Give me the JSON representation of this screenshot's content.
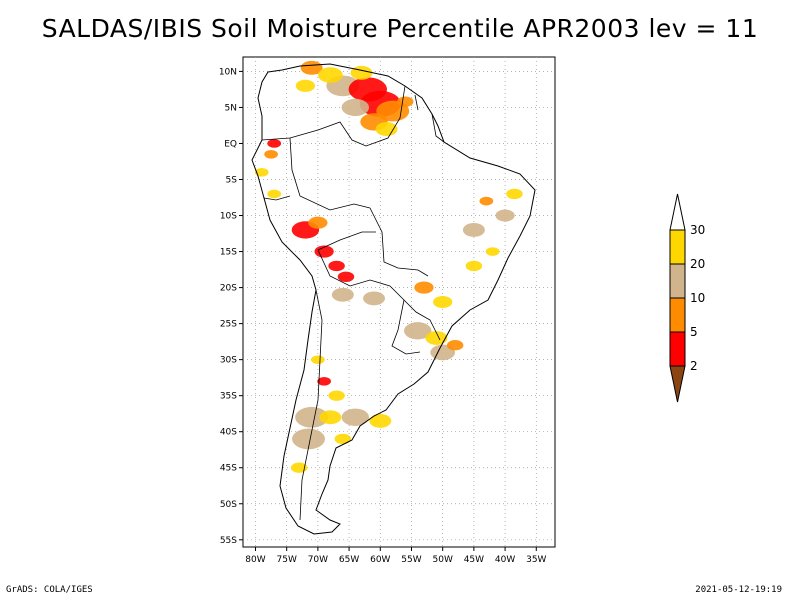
{
  "title": "SALDAS/IBIS Soil Moisture Percentile APR2003 lev = 11",
  "footer": {
    "left": "GrADS: COLA/IGES",
    "right": "2021-05-12-19:19"
  },
  "map": {
    "region": "South America",
    "lon_range": [
      -82,
      -32
    ],
    "lat_range": [
      -56,
      12
    ],
    "lon_ticks": [
      {
        "v": -80,
        "label": "80W"
      },
      {
        "v": -75,
        "label": "75W"
      },
      {
        "v": -70,
        "label": "70W"
      },
      {
        "v": -65,
        "label": "65W"
      },
      {
        "v": -60,
        "label": "60W"
      },
      {
        "v": -55,
        "label": "55W"
      },
      {
        "v": -50,
        "label": "50W"
      },
      {
        "v": -45,
        "label": "45W"
      },
      {
        "v": -40,
        "label": "40W"
      },
      {
        "v": -35,
        "label": "35W"
      }
    ],
    "lat_ticks": [
      {
        "v": 10,
        "label": "10N"
      },
      {
        "v": 5,
        "label": "5N"
      },
      {
        "v": 0,
        "label": "EQ"
      },
      {
        "v": -5,
        "label": "5S"
      },
      {
        "v": -10,
        "label": "10S"
      },
      {
        "v": -15,
        "label": "15S"
      },
      {
        "v": -20,
        "label": "20S"
      },
      {
        "v": -25,
        "label": "25S"
      },
      {
        "v": -30,
        "label": "30S"
      },
      {
        "v": -35,
        "label": "35S"
      },
      {
        "v": -40,
        "label": "40S"
      },
      {
        "v": -45,
        "label": "45S"
      },
      {
        "v": -50,
        "label": "50S"
      },
      {
        "v": -55,
        "label": "55S"
      }
    ]
  },
  "colorbar": {
    "bins": [
      {
        "color": "#8b4513"
      },
      {
        "color": "#ff0000"
      },
      {
        "color": "#ff8c00"
      },
      {
        "color": "#d2b48c"
      },
      {
        "color": "#ffd700"
      },
      {
        "color": "#ffffff"
      }
    ],
    "labels": [
      "2",
      "5",
      "10",
      "20",
      "30"
    ]
  },
  "blotches": [
    {
      "lon": -66,
      "lat": 8,
      "r": 1.2,
      "c": 3
    },
    {
      "lon": -62,
      "lat": 7.5,
      "r": 1.4,
      "c": 1
    },
    {
      "lon": -60,
      "lat": 5.5,
      "r": 1.5,
      "c": 1
    },
    {
      "lon": -58,
      "lat": 4.5,
      "r": 1.2,
      "c": 2
    },
    {
      "lon": -64,
      "lat": 5,
      "r": 1.0,
      "c": 3
    },
    {
      "lon": -61,
      "lat": 3,
      "r": 1.0,
      "c": 2
    },
    {
      "lon": -59,
      "lat": 2,
      "r": 0.8,
      "c": 4
    },
    {
      "lon": -71,
      "lat": 10.5,
      "r": 0.8,
      "c": 2
    },
    {
      "lon": -72,
      "lat": 8,
      "r": 0.7,
      "c": 4
    },
    {
      "lon": -68,
      "lat": 9.5,
      "r": 0.9,
      "c": 4
    },
    {
      "lon": -63,
      "lat": 9.8,
      "r": 0.8,
      "c": 4
    },
    {
      "lon": -56,
      "lat": 5.8,
      "r": 0.6,
      "c": 2
    },
    {
      "lon": -77,
      "lat": 0,
      "r": 0.5,
      "c": 1
    },
    {
      "lon": -77.5,
      "lat": -1.5,
      "r": 0.5,
      "c": 2
    },
    {
      "lon": -79,
      "lat": -4,
      "r": 0.5,
      "c": 4
    },
    {
      "lon": -77,
      "lat": -7,
      "r": 0.5,
      "c": 4
    },
    {
      "lon": -72,
      "lat": -12,
      "r": 1.0,
      "c": 1
    },
    {
      "lon": -70,
      "lat": -11,
      "r": 0.7,
      "c": 2
    },
    {
      "lon": -69,
      "lat": -15,
      "r": 0.7,
      "c": 1
    },
    {
      "lon": -67,
      "lat": -17,
      "r": 0.6,
      "c": 1
    },
    {
      "lon": -65.5,
      "lat": -18.5,
      "r": 0.6,
      "c": 1
    },
    {
      "lon": -66,
      "lat": -21,
      "r": 0.8,
      "c": 3
    },
    {
      "lon": -61,
      "lat": -21.5,
      "r": 0.8,
      "c": 3
    },
    {
      "lon": -53,
      "lat": -20,
      "r": 0.7,
      "c": 2
    },
    {
      "lon": -50,
      "lat": -22,
      "r": 0.7,
      "c": 4
    },
    {
      "lon": -54,
      "lat": -26,
      "r": 1.0,
      "c": 3
    },
    {
      "lon": -51,
      "lat": -27,
      "r": 0.8,
      "c": 4
    },
    {
      "lon": -50,
      "lat": -29,
      "r": 0.9,
      "c": 3
    },
    {
      "lon": -48,
      "lat": -28,
      "r": 0.6,
      "c": 2
    },
    {
      "lon": -45,
      "lat": -12,
      "r": 0.8,
      "c": 3
    },
    {
      "lon": -40,
      "lat": -10,
      "r": 0.7,
      "c": 3
    },
    {
      "lon": -38.5,
      "lat": -7,
      "r": 0.6,
      "c": 4
    },
    {
      "lon": -43,
      "lat": -8,
      "r": 0.5,
      "c": 2
    },
    {
      "lon": -45,
      "lat": -17,
      "r": 0.6,
      "c": 4
    },
    {
      "lon": -42,
      "lat": -15,
      "r": 0.5,
      "c": 4
    },
    {
      "lon": -70,
      "lat": -30,
      "r": 0.5,
      "c": 4
    },
    {
      "lon": -69,
      "lat": -33,
      "r": 0.5,
      "c": 1
    },
    {
      "lon": -67,
      "lat": -35,
      "r": 0.6,
      "c": 4
    },
    {
      "lon": -71,
      "lat": -38,
      "r": 1.2,
      "c": 3
    },
    {
      "lon": -71.5,
      "lat": -41,
      "r": 1.2,
      "c": 3
    },
    {
      "lon": -68,
      "lat": -38,
      "r": 0.8,
      "c": 4
    },
    {
      "lon": -64,
      "lat": -38,
      "r": 1.0,
      "c": 3
    },
    {
      "lon": -60,
      "lat": -38.5,
      "r": 0.8,
      "c": 4
    },
    {
      "lon": -66,
      "lat": -41,
      "r": 0.6,
      "c": 4
    },
    {
      "lon": -73,
      "lat": -45,
      "r": 0.6,
      "c": 4
    }
  ]
}
